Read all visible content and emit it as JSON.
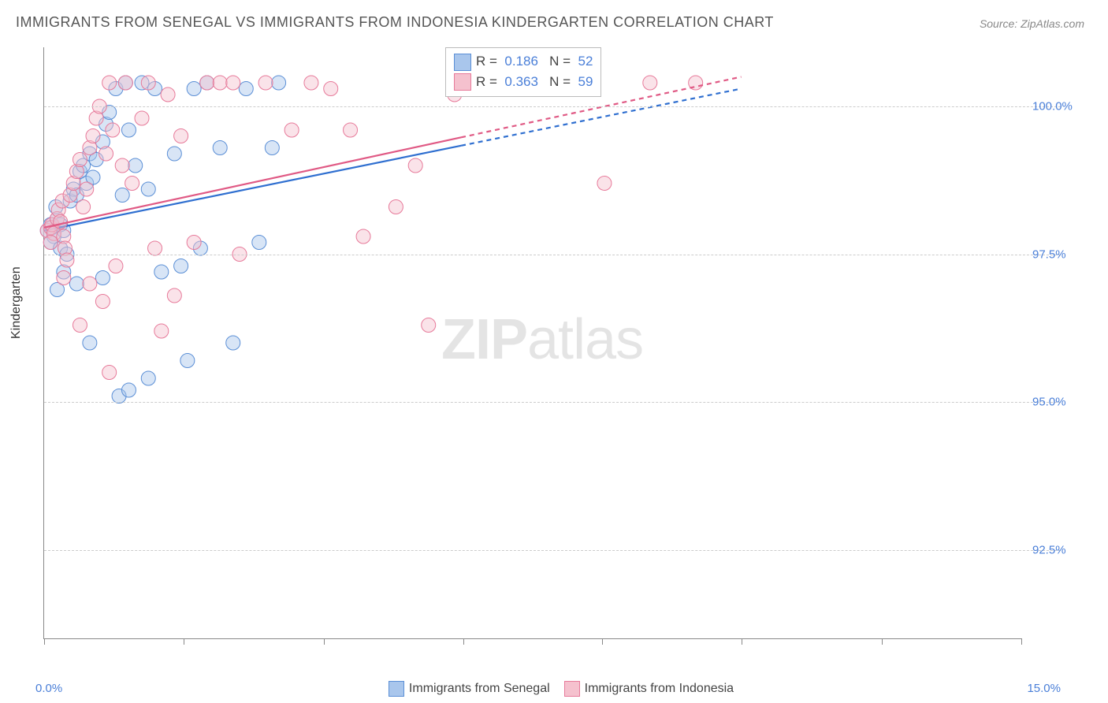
{
  "title": "IMMIGRANTS FROM SENEGAL VS IMMIGRANTS FROM INDONESIA KINDERGARTEN CORRELATION CHART",
  "source": "Source: ZipAtlas.com",
  "ylabel": "Kindergarten",
  "watermark_bold": "ZIP",
  "watermark_light": "atlas",
  "chart": {
    "type": "scatter",
    "xlim": [
      0,
      15
    ],
    "ylim": [
      91.0,
      101.0
    ],
    "x_axis_label_left": "0.0%",
    "x_axis_label_right": "15.0%",
    "y_ticks": [
      92.5,
      95.0,
      97.5,
      100.0
    ],
    "y_tick_labels": [
      "92.5%",
      "95.0%",
      "97.5%",
      "100.0%"
    ],
    "x_tick_positions": [
      0,
      2.14,
      4.29,
      6.43,
      8.57,
      10.71,
      12.86,
      15
    ],
    "grid_color": "#cccccc",
    "background_color": "#ffffff",
    "axis_color": "#888888",
    "tick_label_color": "#4a7fd8",
    "marker_radius": 9,
    "marker_opacity": 0.45,
    "line_width": 2.2,
    "series": [
      {
        "name": "Immigrants from Senegal",
        "fill_color": "#a9c6ec",
        "stroke_color": "#5b8fd6",
        "line_color": "#2f6fd0",
        "r_value": "0.186",
        "n_value": "52",
        "trend": {
          "x1": 0,
          "y1": 97.9,
          "x2": 10.7,
          "y2": 100.3,
          "dash_after_x": 6.4
        },
        "points": [
          [
            0.05,
            97.9
          ],
          [
            0.1,
            98.0
          ],
          [
            0.12,
            97.95
          ],
          [
            0.15,
            97.8
          ],
          [
            0.1,
            97.7
          ],
          [
            0.2,
            98.1
          ],
          [
            0.18,
            98.3
          ],
          [
            0.25,
            98.0
          ],
          [
            0.3,
            97.9
          ],
          [
            0.25,
            97.6
          ],
          [
            0.35,
            97.5
          ],
          [
            0.3,
            97.2
          ],
          [
            0.2,
            96.9
          ],
          [
            0.4,
            98.4
          ],
          [
            0.45,
            98.6
          ],
          [
            0.5,
            98.5
          ],
          [
            0.55,
            98.9
          ],
          [
            0.6,
            99.0
          ],
          [
            0.7,
            99.2
          ],
          [
            0.65,
            98.7
          ],
          [
            0.75,
            98.8
          ],
          [
            0.8,
            99.1
          ],
          [
            0.9,
            99.4
          ],
          [
            0.95,
            99.7
          ],
          [
            1.0,
            99.9
          ],
          [
            1.1,
            100.3
          ],
          [
            1.25,
            100.4
          ],
          [
            1.3,
            99.6
          ],
          [
            1.2,
            98.5
          ],
          [
            1.4,
            99.0
          ],
          [
            1.5,
            100.4
          ],
          [
            1.6,
            98.6
          ],
          [
            1.7,
            100.3
          ],
          [
            1.8,
            97.2
          ],
          [
            1.15,
            95.1
          ],
          [
            1.3,
            95.2
          ],
          [
            1.6,
            95.4
          ],
          [
            2.0,
            99.2
          ],
          [
            2.1,
            97.3
          ],
          [
            2.2,
            95.7
          ],
          [
            2.3,
            100.3
          ],
          [
            2.4,
            97.6
          ],
          [
            2.5,
            100.4
          ],
          [
            2.7,
            99.3
          ],
          [
            2.9,
            96.0
          ],
          [
            3.1,
            100.3
          ],
          [
            3.3,
            97.7
          ],
          [
            3.5,
            99.3
          ],
          [
            3.6,
            100.4
          ],
          [
            0.7,
            96.0
          ],
          [
            0.9,
            97.1
          ],
          [
            0.5,
            97.0
          ]
        ]
      },
      {
        "name": "Immigrants from Indonesia",
        "fill_color": "#f5c1ce",
        "stroke_color": "#e77a9a",
        "line_color": "#e05a85",
        "r_value": "0.363",
        "n_value": "59",
        "trend": {
          "x1": 0,
          "y1": 97.95,
          "x2": 10.7,
          "y2": 100.5,
          "dash_after_x": 6.4
        },
        "points": [
          [
            0.05,
            97.9
          ],
          [
            0.1,
            97.95
          ],
          [
            0.12,
            98.0
          ],
          [
            0.15,
            97.85
          ],
          [
            0.1,
            97.7
          ],
          [
            0.2,
            98.1
          ],
          [
            0.22,
            98.25
          ],
          [
            0.25,
            98.05
          ],
          [
            0.28,
            98.4
          ],
          [
            0.3,
            97.8
          ],
          [
            0.32,
            97.6
          ],
          [
            0.35,
            97.4
          ],
          [
            0.3,
            97.1
          ],
          [
            0.4,
            98.5
          ],
          [
            0.45,
            98.7
          ],
          [
            0.5,
            98.9
          ],
          [
            0.55,
            99.1
          ],
          [
            0.6,
            98.3
          ],
          [
            0.65,
            98.6
          ],
          [
            0.7,
            99.3
          ],
          [
            0.75,
            99.5
          ],
          [
            0.8,
            99.8
          ],
          [
            0.85,
            100.0
          ],
          [
            0.95,
            99.2
          ],
          [
            1.0,
            100.4
          ],
          [
            1.05,
            99.6
          ],
          [
            1.1,
            97.3
          ],
          [
            1.2,
            99.0
          ],
          [
            1.25,
            100.4
          ],
          [
            1.35,
            98.7
          ],
          [
            1.5,
            99.8
          ],
          [
            1.6,
            100.4
          ],
          [
            1.7,
            97.6
          ],
          [
            1.8,
            96.2
          ],
          [
            1.9,
            100.2
          ],
          [
            2.0,
            96.8
          ],
          [
            2.1,
            99.5
          ],
          [
            2.3,
            97.7
          ],
          [
            2.5,
            100.4
          ],
          [
            2.7,
            100.4
          ],
          [
            2.9,
            100.4
          ],
          [
            3.0,
            97.5
          ],
          [
            3.4,
            100.4
          ],
          [
            3.8,
            99.6
          ],
          [
            4.1,
            100.4
          ],
          [
            4.4,
            100.3
          ],
          [
            4.7,
            99.6
          ],
          [
            4.9,
            97.8
          ],
          [
            5.4,
            98.3
          ],
          [
            5.7,
            99.0
          ],
          [
            5.9,
            96.3
          ],
          [
            6.3,
            100.2
          ],
          [
            8.6,
            98.7
          ],
          [
            9.3,
            100.4
          ],
          [
            10.0,
            100.4
          ],
          [
            0.55,
            96.3
          ],
          [
            0.7,
            97.0
          ],
          [
            0.9,
            96.7
          ],
          [
            1.0,
            95.5
          ]
        ]
      }
    ]
  },
  "stats_labels": {
    "r": "R",
    "n": "N",
    "eq": "="
  },
  "legend_labels": {
    "s1": "Immigrants from Senegal",
    "s2": "Immigrants from Indonesia"
  }
}
